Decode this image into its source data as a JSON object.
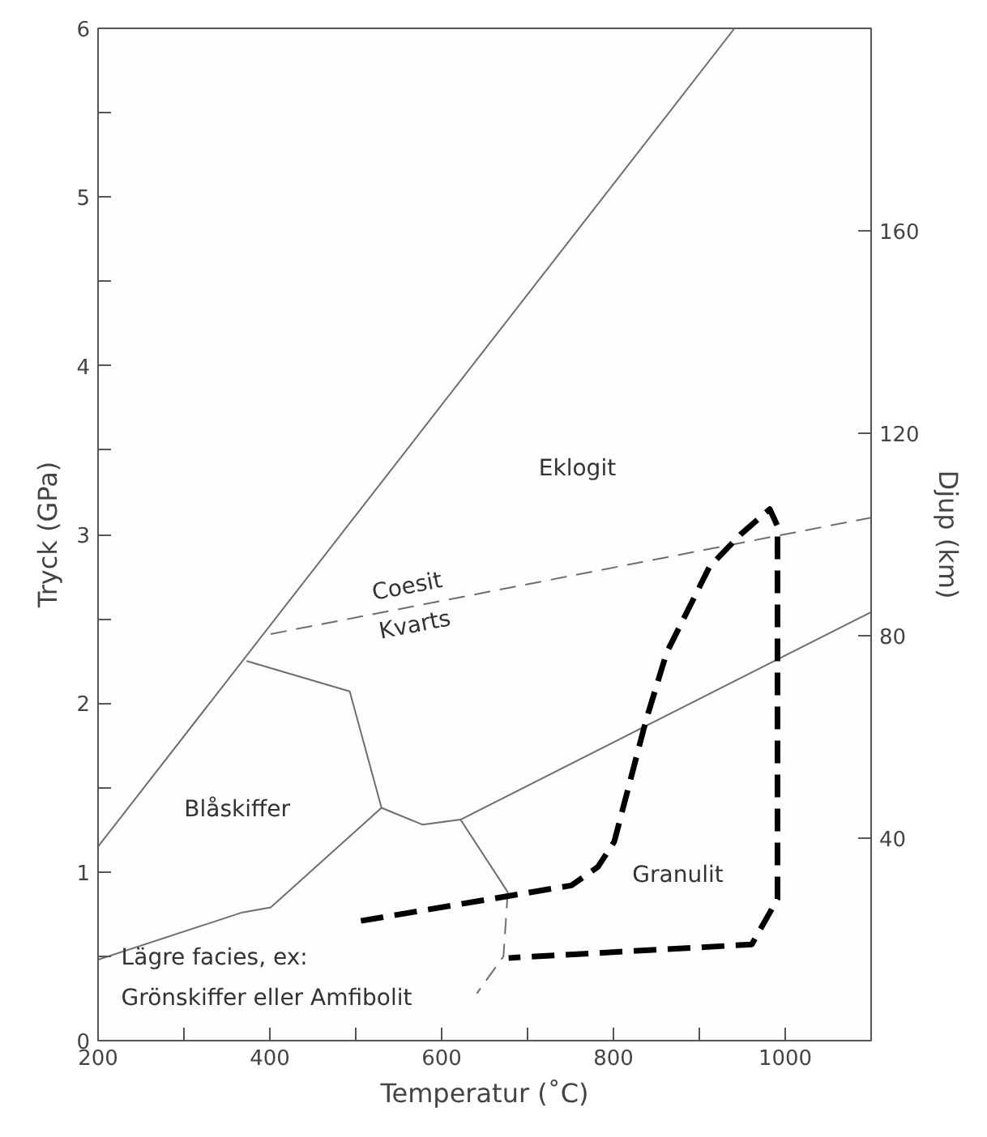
{
  "chart_data": {
    "type": "line",
    "xlabel": "Temperatur (˚C)",
    "ylabel": "Tryck (GPa)",
    "y2label": "Djup (km)",
    "xlim": [
      200,
      1100
    ],
    "ylim": [
      0,
      6
    ],
    "y2lim": [
      0,
      200
    ],
    "xticks": [
      200,
      {
        "value": 300,
        "label": null
      },
      400,
      {
        "value": 500,
        "label": null
      },
      600,
      {
        "value": 700,
        "label": null
      },
      800,
      {
        "value": 900,
        "label": null
      },
      1000
    ],
    "yticks": [
      0,
      {
        "value": 0.5,
        "label": null
      },
      1,
      {
        "value": 1.5,
        "label": null
      },
      2,
      {
        "value": 2.5,
        "label": null
      },
      3,
      {
        "value": 3.5,
        "label": null
      },
      4,
      {
        "value": 4.5,
        "label": null
      },
      5,
      {
        "value": 5.5,
        "label": null
      },
      6
    ],
    "y2ticks": [
      40,
      80,
      120,
      160
    ],
    "grid": false,
    "series": [
      {
        "color": "#6e6e6e",
        "line_style": "solid",
        "x": [
          200,
          941
        ],
        "values": [
          1.15,
          6
        ]
      },
      {
        "color": "#6e6e6e",
        "line_style": "dashed",
        "x": [
          401,
          1100
        ],
        "values": [
          2.41,
          3.1
        ]
      },
      {
        "color": "#6e6e6e",
        "line_style": "solid",
        "x": [
          373,
          493,
          530,
          578,
          622,
          1100
        ],
        "values": [
          2.25,
          2.07,
          1.38,
          1.28,
          1.31,
          2.54
        ]
      },
      {
        "color": "#6e6e6e",
        "line_style": "solid",
        "x": [
          622,
          677
        ],
        "values": [
          1.31,
          0.88
        ]
      },
      {
        "color": "#6e6e6e",
        "line_style": "dashed",
        "x": [
          677,
          672,
          641
        ],
        "values": [
          0.88,
          0.5,
          0.28
        ]
      },
      {
        "color": "#6e6e6e",
        "line_style": "solid",
        "x": [
          200,
          368,
          401,
          530
        ],
        "values": [
          0.48,
          0.76,
          0.79,
          1.38
        ]
      },
      {
        "color": "#000000",
        "line_style": "dashed",
        "x": [
          506,
          751,
          782,
          801,
          838,
          862,
          912,
          948,
          982,
          991,
          991,
          961,
          678
        ],
        "values": [
          0.71,
          0.92,
          1.03,
          1.18,
          1.9,
          2.3,
          2.81,
          3.0,
          3.15,
          3.05,
          0.84,
          0.57,
          0.49
        ]
      }
    ],
    "annotations": [
      "Eklogit",
      "Coesit",
      "Kvarts",
      "Blåskiffer",
      "Granulit",
      "Lägre facies, ex:",
      "Grönskiffer eller Amfibolit"
    ]
  }
}
